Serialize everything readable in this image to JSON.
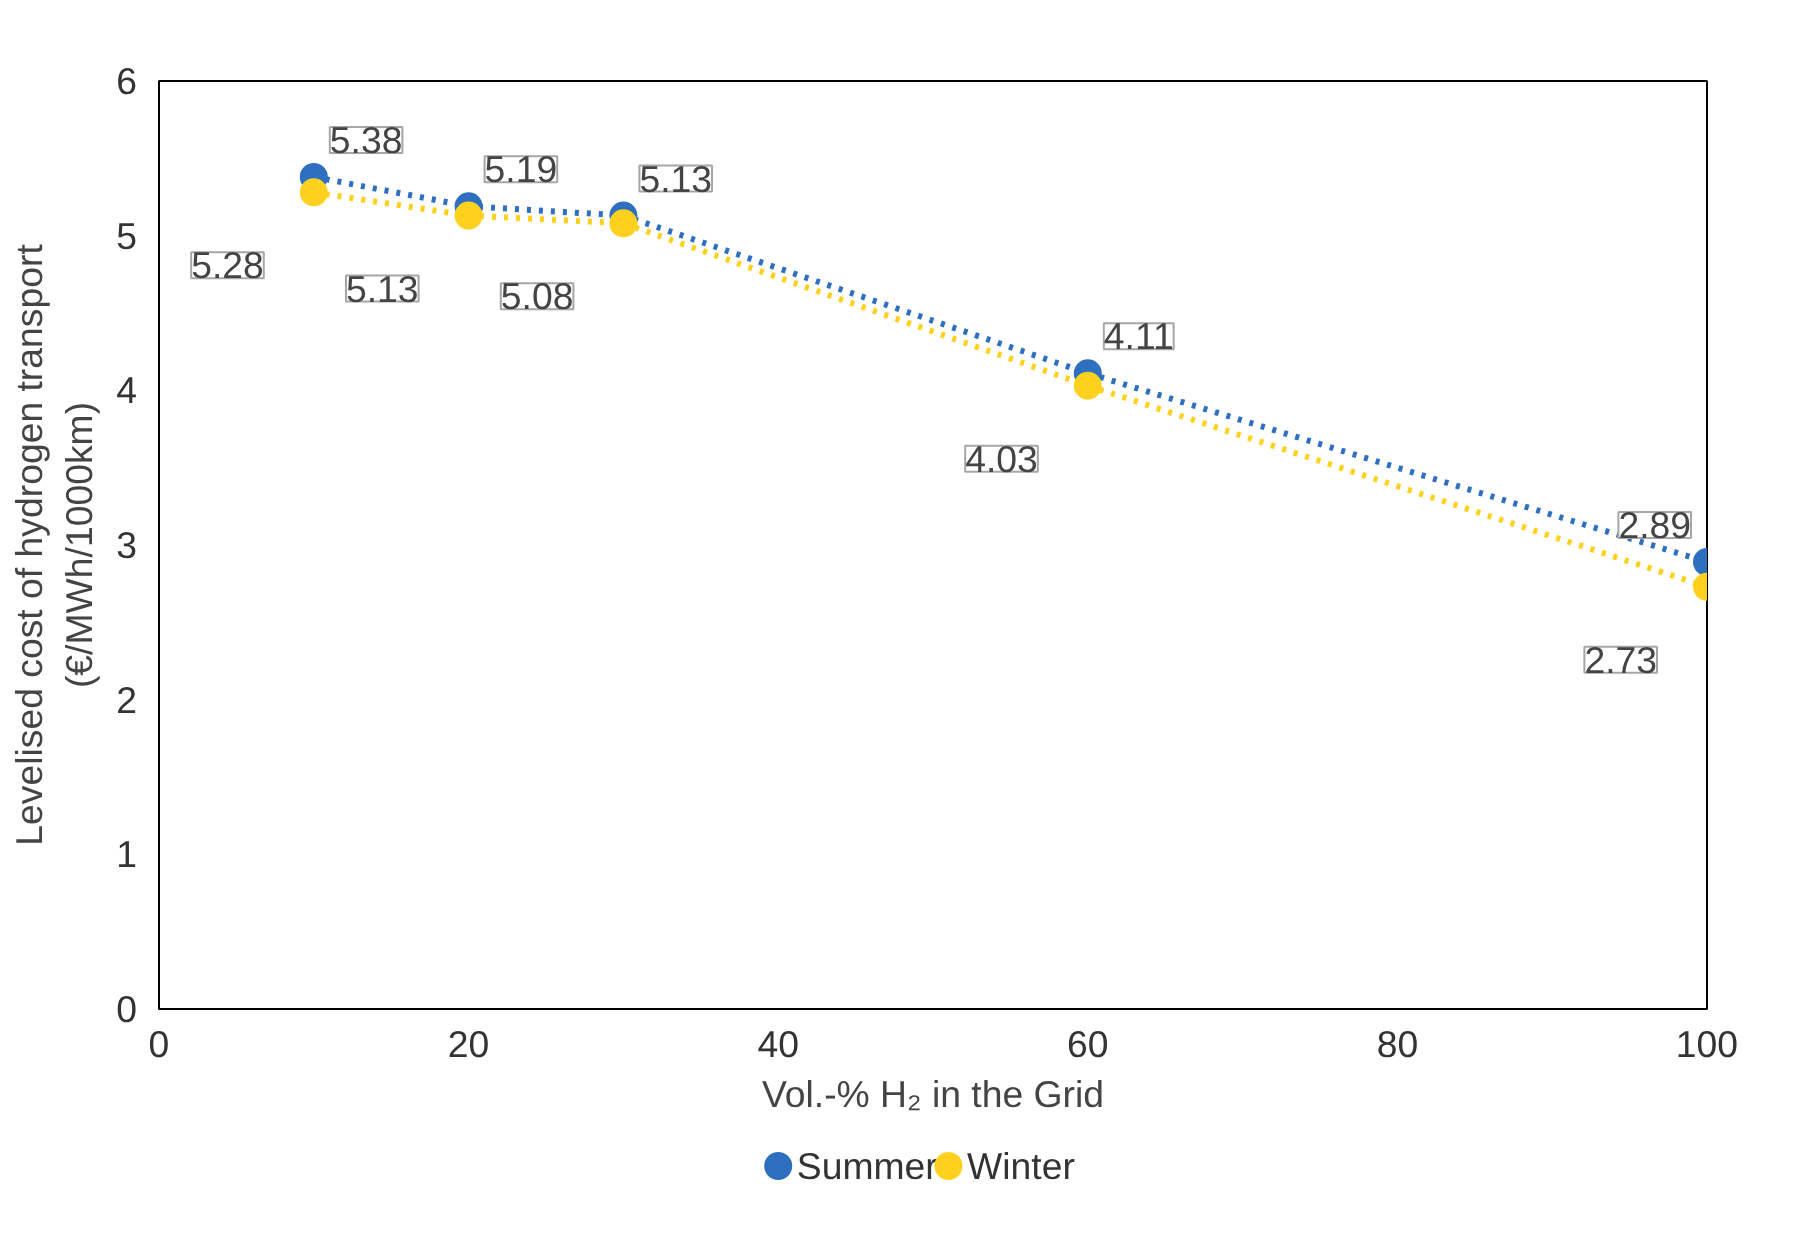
{
  "chart_data": {
    "type": "line",
    "xlabel": "Vol.-% H₂ in the Grid",
    "ylabel": "Levelised cost of hydrogen transport\n(€/MWh/1000km)",
    "x": [
      10,
      20,
      30,
      60,
      100
    ],
    "series": [
      {
        "name": "Summer",
        "color": "#2e6fc0",
        "values": [
          5.38,
          5.19,
          5.13,
          4.11,
          2.89
        ]
      },
      {
        "name": "Winter",
        "color": "#ffd11f",
        "values": [
          5.28,
          5.13,
          5.08,
          4.03,
          2.73
        ]
      }
    ],
    "xlim": [
      0,
      100
    ],
    "xticks": [
      0,
      20,
      40,
      60,
      80,
      100
    ],
    "ylim": [
      0,
      6
    ],
    "yticks": [
      0,
      1,
      2,
      3,
      4,
      5,
      6
    ],
    "grid": false,
    "legend": "bottom",
    "marker": "circle",
    "line_style": "dotted",
    "data_labels": true
  }
}
